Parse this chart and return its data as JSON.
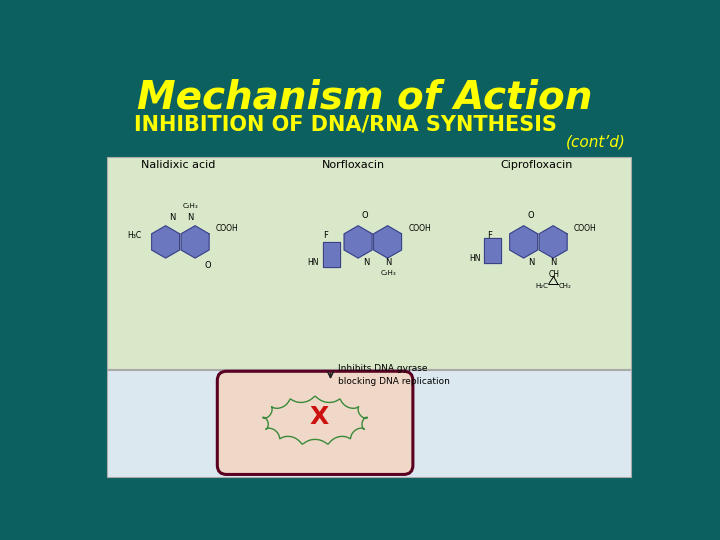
{
  "title_line1": "Mechanism of Action",
  "title_line2": "INHIBITION OF DNA/RNA SYNTHESIS",
  "cont_text": "(cont’d)",
  "title_color": "#FFFF00",
  "subtitle_color": "#FFFF00",
  "cont_color": "#FFFF00",
  "bg_color": "#0d6060",
  "upper_panel_color": "#d8e8c8",
  "lower_panel_color": "#dce8f0",
  "panel_border_color": "#aaaaaa",
  "cell_border_color": "#5a0020",
  "cell_fill_color": "#f0d8c8",
  "dna_color": "#3a8a3a",
  "x_color": "#cc1111",
  "arrow_color": "#222222",
  "struct_color": "#6b78c0",
  "struct_edge_color": "#3a4080",
  "inhibits_text": "Inhibits DNA gyrase\nblocking DNA replication",
  "nalidixic_label": "Nalidixic acid",
  "norfloxacin_label": "Norfloxacin",
  "ciprofloxacin_label": "Ciprofloxacin",
  "title_fontsize": 28,
  "subtitle_fontsize": 15,
  "cont_fontsize": 11,
  "label_fontsize": 8,
  "chem_text_fontsize": 5.5
}
